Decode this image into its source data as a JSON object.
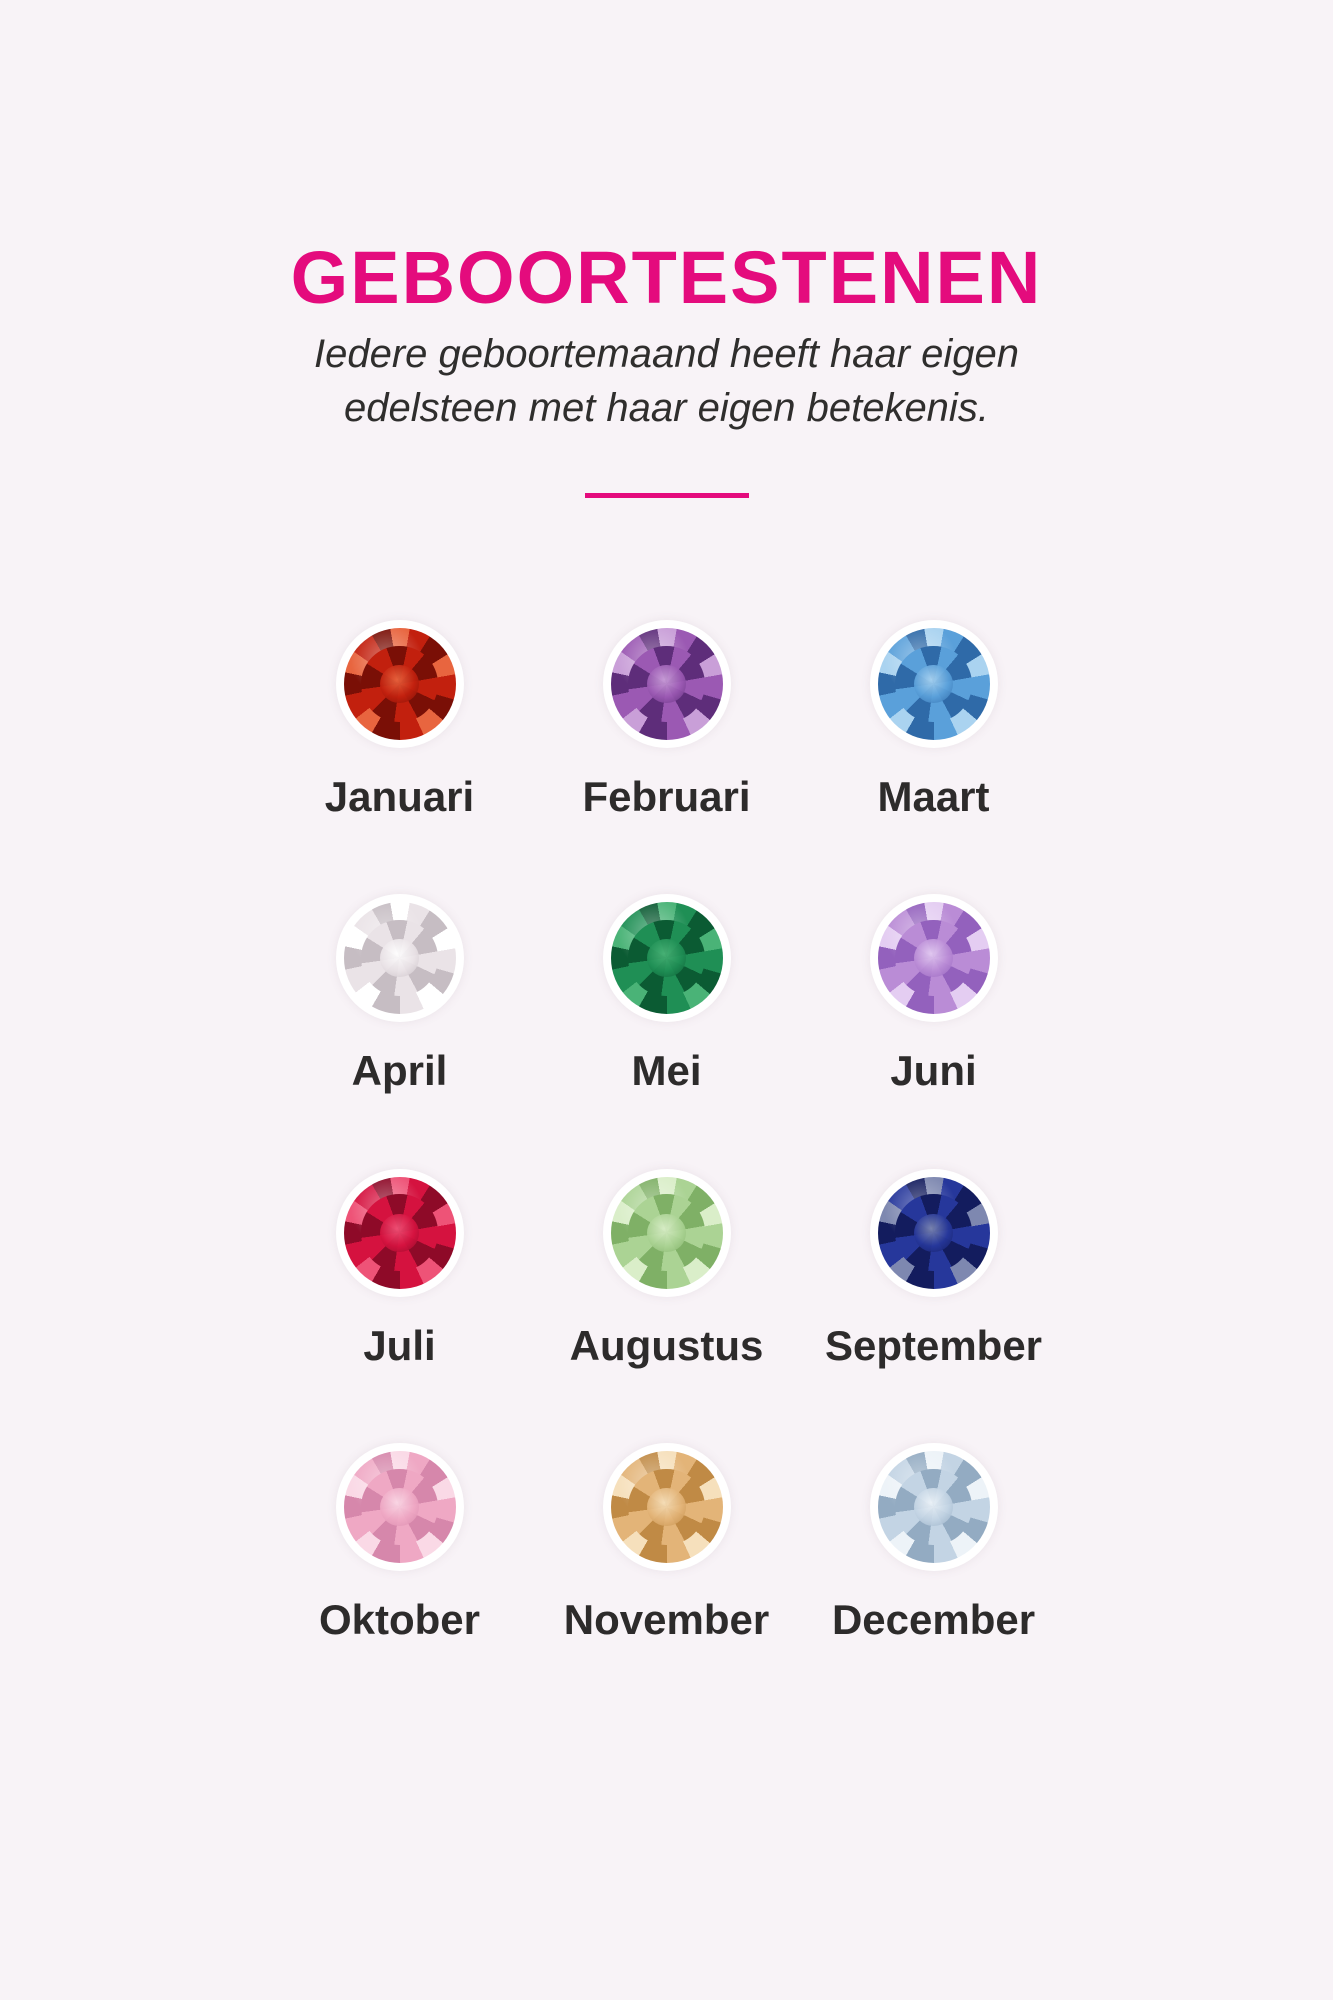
{
  "page": {
    "background": "#f8f3f7",
    "accent": "#e40b7d",
    "text_color": "#2d2b2b"
  },
  "header": {
    "title": "GEBOORTESTENEN",
    "subtitle_line1": "Iedere geboortemaand heeft haar eigen",
    "subtitle_line2": "edelsteen met haar eigen betekenis."
  },
  "divider": {
    "color": "#e40b7d"
  },
  "months": [
    {
      "label": "Januari",
      "gem_colors": {
        "dark": "#7a0f06",
        "mid": "#c2200e",
        "light": "#e8653f"
      }
    },
    {
      "label": "Februari",
      "gem_colors": {
        "dark": "#5e2d7a",
        "mid": "#9b59b3",
        "light": "#c99fd8"
      }
    },
    {
      "label": "Maart",
      "gem_colors": {
        "dark": "#2f6aa8",
        "mid": "#5aa0da",
        "light": "#aad3f0"
      }
    },
    {
      "label": "April",
      "gem_colors": {
        "dark": "#c6bdc3",
        "mid": "#eae3e7",
        "light": "#ffffff"
      }
    },
    {
      "label": "Mei",
      "gem_colors": {
        "dark": "#0b5b33",
        "mid": "#1f8f55",
        "light": "#4ab377"
      }
    },
    {
      "label": "Juni",
      "gem_colors": {
        "dark": "#9361bd",
        "mid": "#ba8cd6",
        "light": "#e4cdf2"
      }
    },
    {
      "label": "Juli",
      "gem_colors": {
        "dark": "#8e0a28",
        "mid": "#d5123f",
        "light": "#ee5377"
      }
    },
    {
      "label": "Augustus",
      "gem_colors": {
        "dark": "#7fb066",
        "mid": "#abd394",
        "light": "#daeec9"
      }
    },
    {
      "label": "September",
      "gem_colors": {
        "dark": "#131c5e",
        "mid": "#26379b",
        "light": "#7e88b0"
      }
    },
    {
      "label": "Oktober",
      "gem_colors": {
        "dark": "#d687ab",
        "mid": "#efa8c4",
        "light": "#fad9e6"
      }
    },
    {
      "label": "November",
      "gem_colors": {
        "dark": "#c08a45",
        "mid": "#e3b478",
        "light": "#f6e0bc"
      }
    },
    {
      "label": "December",
      "gem_colors": {
        "dark": "#93abc2",
        "mid": "#c3d4e4",
        "light": "#edf3f8"
      }
    }
  ]
}
